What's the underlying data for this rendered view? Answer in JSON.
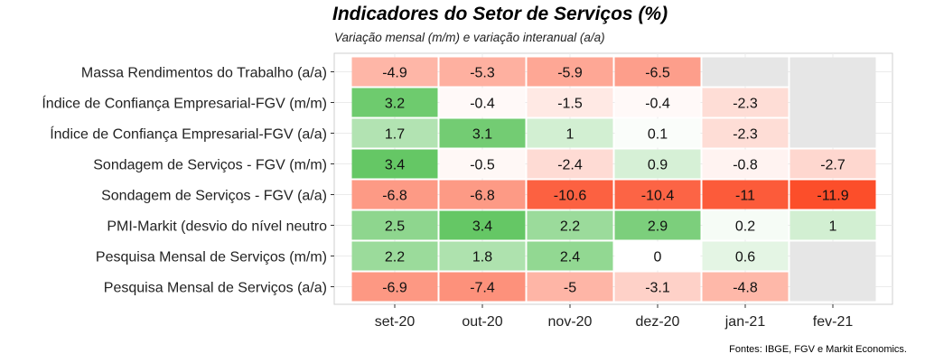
{
  "chart_data": {
    "type": "heatmap",
    "title": "Indicadores do Setor de Serviços (%)",
    "subtitle": "Variação mensal (m/m) e  variação interanual (a/a)",
    "source": "Fontes: IBGE, FGV e Markit Economics.",
    "columns": [
      "set-20",
      "out-20",
      "nov-20",
      "dez-20",
      "jan-21",
      "fev-21"
    ],
    "rows": [
      "Massa Rendimentos do Trabalho (a/a)",
      "Índice de Confiança Empresarial-FGV (m/m)",
      "Índice de Confiança Empresarial-FGV (a/a)",
      "Sondagem de Serviços - FGV (m/m)",
      "Sondagem de Serviços - FGV (a/a)",
      "PMI-Markit (desvio do nível neutro",
      "Pesquisa Mensal de Serviços (m/m)",
      "Pesquisa Mensal de Serviços (a/a)"
    ],
    "values": [
      [
        -4.9,
        -5.3,
        -5.9,
        -6.5,
        null,
        null
      ],
      [
        3.2,
        -0.4,
        -1.5,
        -0.4,
        -2.3,
        null
      ],
      [
        1.7,
        3.1,
        1,
        0.1,
        -2.3,
        null
      ],
      [
        3.4,
        -0.5,
        -2.4,
        0.9,
        -0.8,
        -2.7
      ],
      [
        -6.8,
        -6.8,
        -10.6,
        -10.4,
        -11,
        -11.9
      ],
      [
        2.5,
        3.4,
        2.2,
        2.9,
        0.2,
        1
      ],
      [
        2.2,
        1.8,
        2.4,
        0,
        0.6,
        null
      ],
      [
        -6.9,
        -7.4,
        -5,
        -3.1,
        -4.8,
        null
      ]
    ],
    "color_scale": {
      "negative": "#fc4e2a",
      "neutral": "#ffffff",
      "positive": "#5cc45c",
      "missing": "#e6e6e6"
    }
  }
}
